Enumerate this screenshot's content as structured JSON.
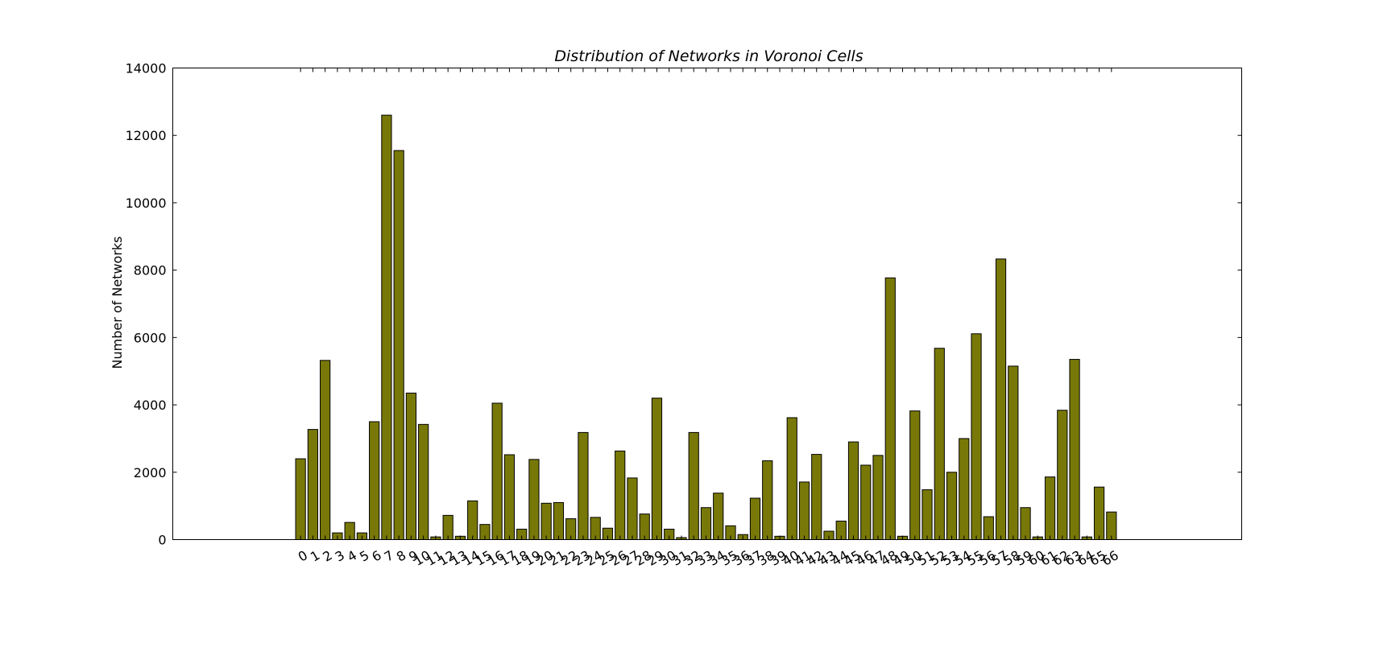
{
  "chart_data": {
    "type": "bar",
    "title": "Distribution of Networks in Voronoi Cells",
    "xlabel": "",
    "ylabel": "Number of Networks",
    "ylim": [
      0,
      14000
    ],
    "yticks": [
      0,
      2000,
      4000,
      6000,
      8000,
      10000,
      12000,
      14000
    ],
    "categories": [
      "0",
      "1",
      "2",
      "3",
      "4",
      "5",
      "6",
      "7",
      "8",
      "9",
      "10",
      "11",
      "12",
      "13",
      "14",
      "15",
      "16",
      "17",
      "18",
      "19",
      "20",
      "21",
      "22",
      "23",
      "24",
      "25",
      "26",
      "27",
      "28",
      "29",
      "30",
      "31",
      "32",
      "33",
      "34",
      "35",
      "36",
      "37",
      "38",
      "39",
      "40",
      "41",
      "42",
      "43",
      "44",
      "45",
      "46",
      "47",
      "48",
      "49",
      "50",
      "51",
      "52",
      "53",
      "54",
      "55",
      "56",
      "57",
      "58",
      "59",
      "60",
      "61",
      "62",
      "63",
      "64",
      "65",
      "66"
    ],
    "values": [
      2400,
      3270,
      5320,
      200,
      510,
      200,
      3500,
      12600,
      11550,
      4350,
      3420,
      80,
      720,
      100,
      1150,
      450,
      4050,
      2520,
      310,
      2380,
      1080,
      1100,
      620,
      3180,
      660,
      340,
      2630,
      1830,
      760,
      4200,
      310,
      60,
      3180,
      950,
      1380,
      410,
      150,
      1230,
      2340,
      100,
      3620,
      1710,
      2530,
      250,
      550,
      2900,
      2210,
      2500,
      7770,
      100,
      3820,
      1480,
      5680,
      2000,
      3000,
      6110,
      680,
      8330,
      5150,
      950,
      80,
      1860,
      3840,
      5350,
      80,
      1560,
      820
    ],
    "bar_color": "#787808",
    "edge_color": "#000000",
    "grid": false
  }
}
